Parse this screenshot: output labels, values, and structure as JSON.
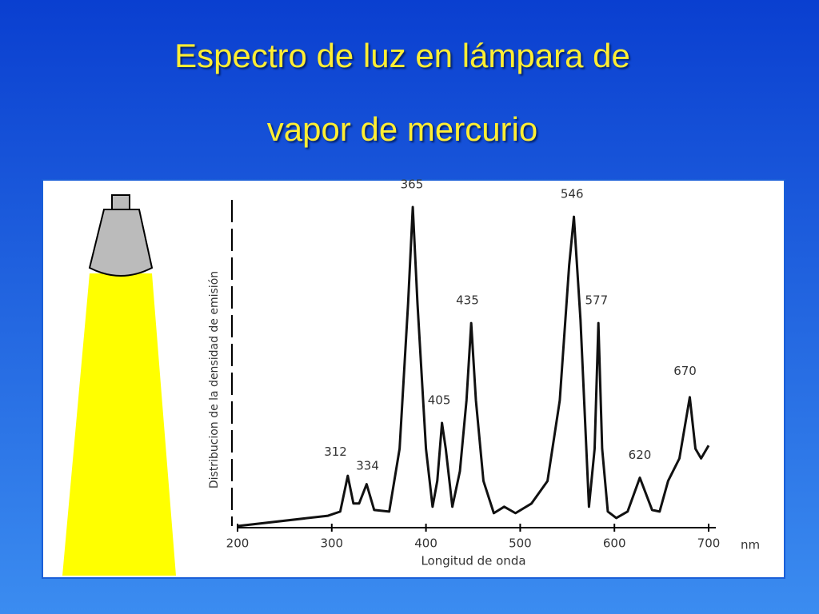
{
  "chart_data": {
    "type": "line",
    "title": "Espectro de luz en lámpara de vapor de mercurio",
    "xlabel": "Longitud de onda",
    "xunit": "nm",
    "ylabel": "Distribucion de la densidad de emisión",
    "x": [
      200,
      296,
      309,
      317,
      323,
      329,
      337,
      345,
      361,
      372,
      381,
      386,
      391,
      400,
      407,
      412,
      417,
      421,
      428,
      436,
      443,
      448,
      453,
      461,
      472,
      483,
      495,
      512,
      529,
      542,
      552,
      557,
      564,
      573,
      579,
      583,
      587,
      593,
      602,
      614,
      627,
      640,
      648,
      657,
      669,
      680,
      686,
      692,
      700
    ],
    "values": [
      0,
      3.2,
      4.5,
      15.6,
      7,
      7,
      13,
      5,
      4.5,
      24,
      69,
      99,
      69,
      24,
      6,
      14,
      32,
      24,
      6,
      17,
      39,
      63,
      39,
      14,
      4,
      6,
      4,
      7,
      14,
      39,
      81,
      96,
      64,
      6,
      24,
      63,
      24,
      4.5,
      2.5,
      4.5,
      15,
      5,
      4.5,
      14,
      21,
      40,
      24,
      21,
      25
    ],
    "color": "#111111",
    "xlim": [
      200,
      700
    ],
    "xticks": [
      200,
      300,
      400,
      500,
      600,
      700
    ],
    "ylim": [
      0,
      100
    ],
    "annotations": [
      {
        "text": "312",
        "x": 304,
        "y": 20
      },
      {
        "text": "334",
        "x": 338,
        "y": 15.6
      },
      {
        "text": "365",
        "x": 385,
        "y": 103
      },
      {
        "text": "405",
        "x": 414,
        "y": 36
      },
      {
        "text": "435",
        "x": 444,
        "y": 67
      },
      {
        "text": "546",
        "x": 555,
        "y": 100
      },
      {
        "text": "577",
        "x": 581,
        "y": 67
      },
      {
        "text": "620",
        "x": 627,
        "y": 19
      },
      {
        "text": "670",
        "x": 675,
        "y": 45
      }
    ]
  }
}
